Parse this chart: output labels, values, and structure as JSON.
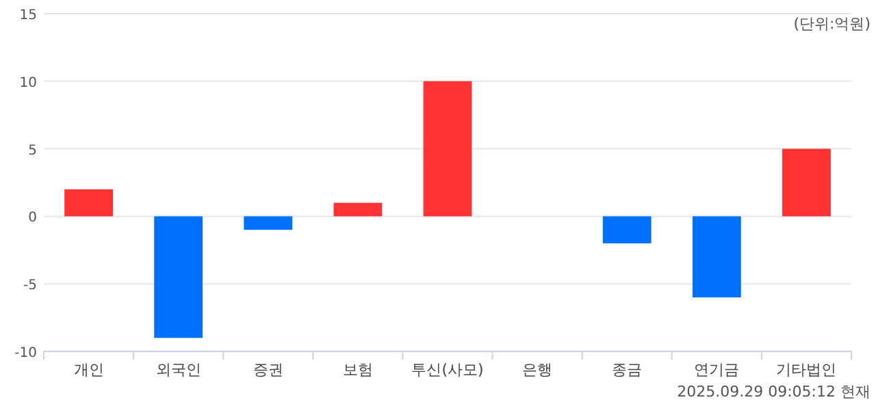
{
  "chart_data": {
    "type": "bar",
    "categories": [
      "개인",
      "외국인",
      "증권",
      "보험",
      "투신(사모)",
      "은행",
      "종금",
      "연기금",
      "기타법인"
    ],
    "values": [
      2,
      -9,
      -1,
      1,
      10,
      0,
      -2,
      -6,
      5
    ],
    "colors": [
      "#ff3333",
      "#0070ff",
      "#0070ff",
      "#ff3333",
      "#ff3333",
      "#ff3333",
      "#0070ff",
      "#0070ff",
      "#ff3333"
    ],
    "ylim": [
      -10,
      15
    ],
    "yticks": [
      -10,
      -5,
      0,
      5,
      10,
      15
    ],
    "grid": "y",
    "annotations": [
      "(단위:억원)",
      "2025.09.29 09:05:12 현재"
    ]
  }
}
